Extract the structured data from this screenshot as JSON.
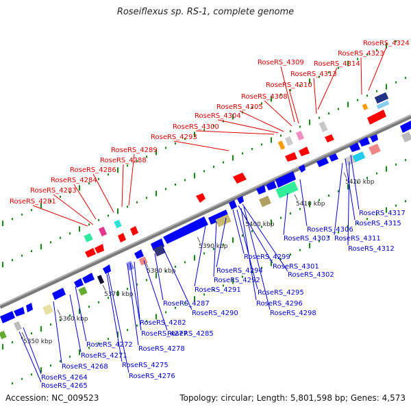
{
  "title": "Roseiflexus sp. RS-1, complete genome",
  "accession": "Accession: NC_009523",
  "summary": "Topology: circular; Length: 5,801,598 bp; Genes: 4,573",
  "colors": {
    "backbone": "#8c8c8c",
    "forward_label": "#dd0000",
    "reverse_label": "#0000cc",
    "cds_forward": "#ff0000",
    "cds_reverse": "#0000ff",
    "gc_dots": "#118811"
  },
  "scale_ticks": [
    "5350 kbp",
    "5360 kbp",
    "5370 kbp",
    "5380 kbp",
    "5390 kbp",
    "5400 kbp",
    "5410 kbp",
    "5420 kbp"
  ],
  "forward_labels": [
    "RoseRS_4324",
    "RoseRS_4323",
    "RoseRS_4314",
    "RoseRS_4313",
    "RoseRS_4309",
    "RoseRS_4310",
    "RoseRS_4308",
    "RoseRS_4305",
    "RoseRS_4304",
    "RoseRS_4300",
    "RoseRS_4293",
    "RoseRS_4289",
    "RoseRS_4288",
    "RoseRS_4286",
    "RoseRS_4284",
    "RoseRS_4283",
    "RoseRS_4281"
  ],
  "reverse_labels": [
    "RoseRS_4317",
    "RoseRS_4315",
    "RoseRS_4306",
    "RoseRS_4311",
    "RoseRS_4303",
    "RoseRS_4312",
    "RoseRS_4299",
    "RoseRS_4294",
    "RoseRS_4301",
    "RoseRS_4292",
    "RoseRS_4302",
    "RoseRS_4291",
    "RoseRS_4295",
    "RoseRS_4287",
    "RoseRS_4296",
    "RoseRS_4298",
    "RoseRS_4290",
    "RoseRS_4282",
    "RoseRS_4277",
    "RoseRS_4285",
    "RoseRS_4272",
    "RoseRS_4278",
    "RoseRS_4271",
    "RoseRS_4268",
    "RoseRS_4275",
    "RoseRS_4276",
    "RoseRS_4264",
    "RoseRS_4265"
  ]
}
